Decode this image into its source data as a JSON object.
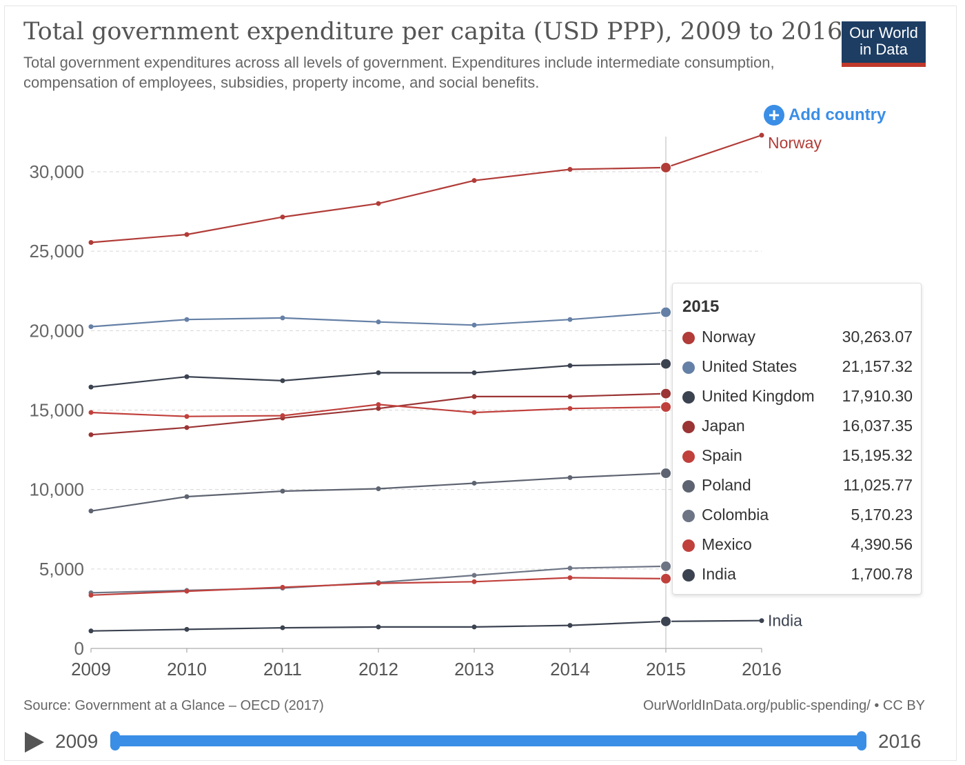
{
  "header": {
    "title": "Total government expenditure per capita (USD PPP), 2009 to 2016",
    "subtitle": "Total government expenditures across all levels of government. Expenditures include intermediate consumption, compensation of employees, subsidies, property income, and social benefits.",
    "logo_line1": "Our World",
    "logo_line2": "in Data",
    "add_country_label": "Add country"
  },
  "footer": {
    "source": "Source: Government at a Glance – OECD (2017)",
    "license": "OurWorldInData.org/public-spending/ • CC BY"
  },
  "timeline": {
    "start_label": "2009",
    "end_label": "2016"
  },
  "tooltip": {
    "year": "2015",
    "rows": [
      {
        "name": "Norway",
        "value": "30,263.07",
        "color": "#b13c38"
      },
      {
        "name": "United States",
        "value": "21,157.32",
        "color": "#6580a6"
      },
      {
        "name": "United Kingdom",
        "value": "17,910.30",
        "color": "#3b4250"
      },
      {
        "name": "Japan",
        "value": "16,037.35",
        "color": "#9b3434"
      },
      {
        "name": "Spain",
        "value": "15,195.32",
        "color": "#c0403c"
      },
      {
        "name": "Poland",
        "value": "11,025.77",
        "color": "#5d6370"
      },
      {
        "name": "Colombia",
        "value": "5,170.23",
        "color": "#6d7585"
      },
      {
        "name": "Mexico",
        "value": "4,390.56",
        "color": "#c0403c"
      },
      {
        "name": "India",
        "value": "1,700.78",
        "color": "#3b4250"
      }
    ]
  },
  "chart_data": {
    "type": "line",
    "x": [
      2009,
      2010,
      2011,
      2012,
      2013,
      2014,
      2015,
      2016
    ],
    "ylim": [
      0,
      30000
    ],
    "yticks": [
      "0",
      "5,000",
      "10,000",
      "15,000",
      "20,000",
      "25,000",
      "30,000"
    ],
    "ytick_values": [
      0,
      5000,
      10000,
      15000,
      20000,
      25000,
      30000
    ],
    "xticks": [
      "2009",
      "2010",
      "2011",
      "2012",
      "2013",
      "2014",
      "2015",
      "2016"
    ],
    "highlight_year": 2015,
    "grid": "horizontal dashed",
    "series": [
      {
        "name": "Norway",
        "color": "#b13c38",
        "label_visible": true,
        "values": [
          25550,
          26050,
          27150,
          28000,
          29450,
          30150,
          30263.07,
          32300
        ]
      },
      {
        "name": "United States",
        "color": "#6580a6",
        "label_visible": false,
        "values": [
          20250,
          20700,
          20800,
          20550,
          20350,
          20700,
          21157.32,
          null
        ]
      },
      {
        "name": "United Kingdom",
        "color": "#3b4250",
        "label_visible": false,
        "values": [
          16450,
          17100,
          16850,
          17350,
          17350,
          17800,
          17910.3,
          null
        ]
      },
      {
        "name": "Japan",
        "color": "#9b3434",
        "label_visible": false,
        "values": [
          13450,
          13900,
          14500,
          15100,
          15850,
          15850,
          16037.35,
          null
        ]
      },
      {
        "name": "Spain",
        "color": "#c0403c",
        "label_visible": false,
        "values": [
          14850,
          14600,
          14650,
          15350,
          14850,
          15100,
          15195.32,
          null
        ]
      },
      {
        "name": "Poland",
        "color": "#5d6370",
        "label_visible": false,
        "values": [
          8650,
          9550,
          9900,
          10050,
          10400,
          10750,
          11025.77,
          null
        ]
      },
      {
        "name": "Colombia",
        "color": "#6d7585",
        "label_visible": false,
        "values": [
          3500,
          3650,
          3800,
          4150,
          4600,
          5050,
          5170.23,
          null
        ]
      },
      {
        "name": "Mexico",
        "color": "#c0403c",
        "label_visible": false,
        "values": [
          3350,
          3600,
          3850,
          4100,
          4200,
          4450,
          4390.56,
          null
        ]
      },
      {
        "name": "India",
        "color": "#3b4250",
        "label_visible": true,
        "values": [
          1100,
          1200,
          1300,
          1350,
          1350,
          1450,
          1700.78,
          1750
        ]
      }
    ],
    "faded_labels": [
      {
        "text": "United States",
        "value": 21000
      },
      {
        "text": "United Kingdom",
        "value": 18000
      },
      {
        "text": "Japan",
        "value": 16000
      },
      {
        "text": "Spain",
        "value": 15000
      },
      {
        "text": "Poland",
        "value": 11300
      },
      {
        "text": "Colombia",
        "value": 5200
      },
      {
        "text": "Mexico",
        "value": 4000
      }
    ]
  }
}
